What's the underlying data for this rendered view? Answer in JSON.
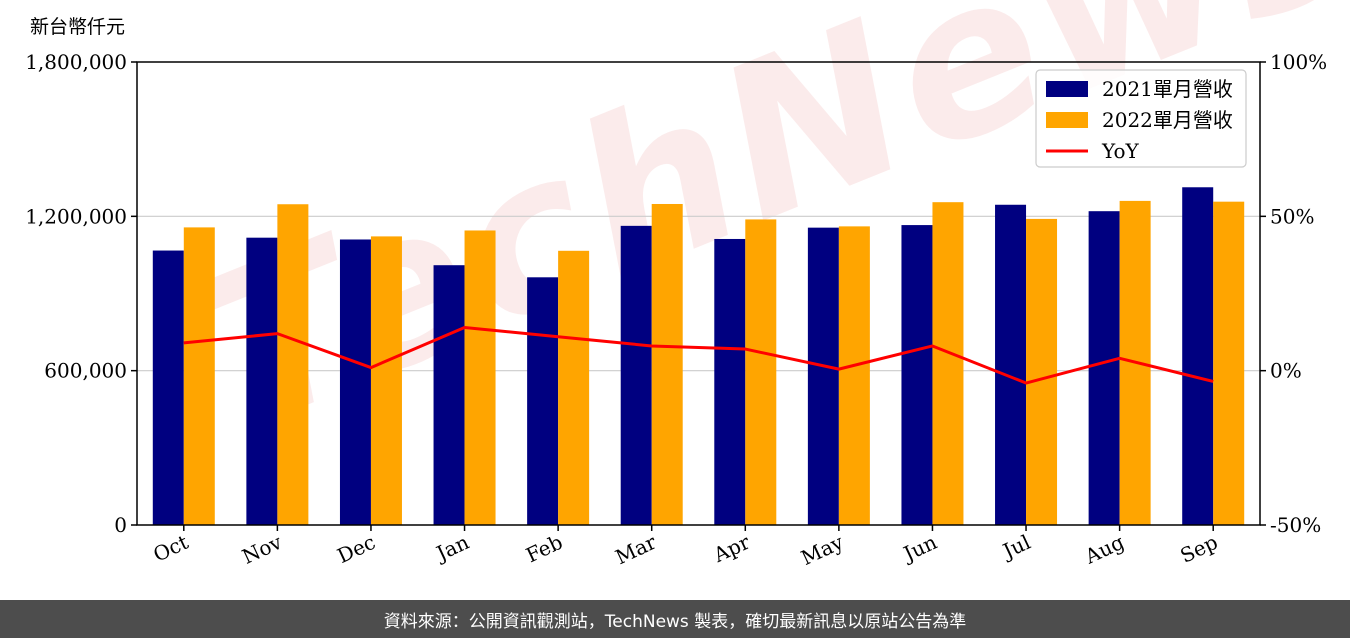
{
  "chart_data": {
    "type": "bar",
    "ylabel": "新台幣仟元",
    "categories": [
      "Oct",
      "Nov",
      "Dec",
      "Jan",
      "Feb",
      "Mar",
      "Apr",
      "May",
      "Jun",
      "Jul",
      "Aug",
      "Sep"
    ],
    "series": [
      {
        "name": "2021單月營收",
        "type": "bar",
        "color": "#000080",
        "values": [
          1067000,
          1117000,
          1110000,
          1010000,
          963000,
          1163000,
          1112000,
          1156000,
          1166000,
          1245000,
          1220000,
          1313000
        ]
      },
      {
        "name": "2022單月營收",
        "type": "bar",
        "color": "#ffa500",
        "values": [
          1157000,
          1247000,
          1122000,
          1145000,
          1066000,
          1248000,
          1188000,
          1161000,
          1255000,
          1190000,
          1260000,
          1257000
        ]
      },
      {
        "name": "YoY",
        "type": "line",
        "color": "#ff0000",
        "axis": "right",
        "values": [
          9,
          12,
          1,
          14,
          11,
          8,
          7,
          0.5,
          8,
          -4,
          4,
          -3.5
        ]
      }
    ],
    "ylim": [
      0,
      1800000
    ],
    "yticks": [
      0,
      600000,
      1200000,
      1800000
    ],
    "ytick_labels": [
      "0",
      "600,000",
      "1,200,000",
      "1,800,000"
    ],
    "y2lim": [
      -50,
      100
    ],
    "y2ticks": [
      -50,
      0,
      50,
      100
    ],
    "y2tick_labels": [
      "-50%",
      "0%",
      "50%",
      "100%"
    ],
    "grid": "horizontal",
    "legend": "top-right"
  },
  "watermark": "TechNews",
  "footer": {
    "source": "資料來源：公開資訊觀測站，TechNews 製表，確切最新訊息以原站公告為準"
  }
}
